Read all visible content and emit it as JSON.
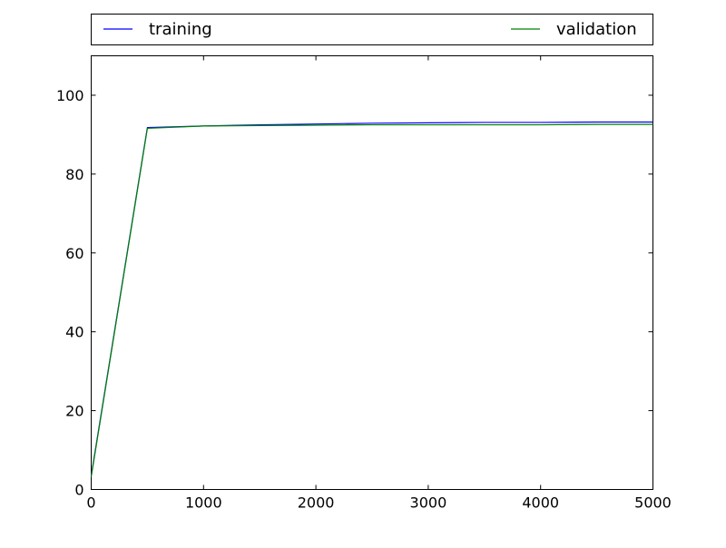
{
  "chart_data": {
    "type": "line",
    "title": "",
    "xlabel": "",
    "ylabel": "",
    "xlim": [
      0,
      5000
    ],
    "ylim": [
      0,
      110
    ],
    "xticks": [
      0,
      1000,
      2000,
      3000,
      4000,
      5000
    ],
    "yticks": [
      0,
      20,
      40,
      60,
      80,
      100
    ],
    "xtick_labels": [
      "0",
      "1000",
      "2000",
      "3000",
      "4000",
      "5000"
    ],
    "ytick_labels": [
      "0",
      "20",
      "40",
      "60",
      "80",
      "100"
    ],
    "grid": false,
    "legend": {
      "placement": "top, above plot, expanded across width",
      "entries": [
        "training",
        "validation"
      ]
    },
    "series": [
      {
        "name": "training",
        "color": "#0000ff",
        "x": [
          0,
          500,
          1000,
          1500,
          2000,
          2500,
          3000,
          3500,
          4000,
          4500,
          5000
        ],
        "y": [
          3.5,
          91.8,
          92.2,
          92.5,
          92.7,
          92.9,
          93.0,
          93.1,
          93.1,
          93.2,
          93.2
        ]
      },
      {
        "name": "validation",
        "color": "#008000",
        "x": [
          0,
          500,
          1000,
          1500,
          2000,
          2500,
          3000,
          3500,
          4000,
          4500,
          5000
        ],
        "y": [
          3.2,
          91.6,
          92.2,
          92.3,
          92.4,
          92.5,
          92.5,
          92.5,
          92.5,
          92.6,
          92.6
        ]
      }
    ]
  }
}
